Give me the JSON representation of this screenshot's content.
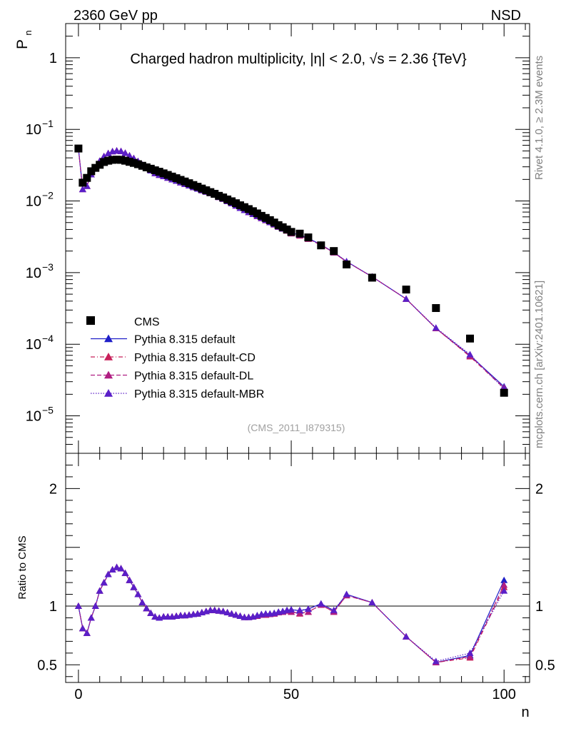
{
  "header": {
    "left": "2360 GeV pp",
    "right": "NSD"
  },
  "side_labels": {
    "rivet": "Rivet 4.1.0, ≥ 2.3M events",
    "mcplots": "mcplots.cern.ch [arXiv:2401.10621]"
  },
  "chart_data": {
    "type": "line",
    "title": "Charged hadron multiplicity, |η| < 2.0, √s = 2.36 {TeV}",
    "analysis_id": "(CMS_2011_I879315)",
    "xlabel": "n",
    "ylabel": "P_n",
    "ylabel_main": "P",
    "ylabel_sub": "n",
    "ratio_ylabel": "Ratio to CMS",
    "xlim": [
      -3,
      106
    ],
    "ylim": [
      3e-06,
      3
    ],
    "yscale": "log",
    "ratio_ylim": [
      0.35,
      2.3
    ],
    "x_ticks": [
      0,
      50,
      100
    ],
    "x_tick_labels": [
      "0",
      "50",
      "100"
    ],
    "y_ticks": [
      1,
      0.1,
      0.01,
      0.001,
      0.0001,
      1e-05
    ],
    "y_tick_labels": [
      {
        "base": "1",
        "exp": ""
      },
      {
        "base": "10",
        "exp": "−1"
      },
      {
        "base": "10",
        "exp": "−2"
      },
      {
        "base": "10",
        "exp": "−3"
      },
      {
        "base": "10",
        "exp": "−4"
      },
      {
        "base": "10",
        "exp": "−5"
      }
    ],
    "ratio_ticks": [
      0.5,
      1,
      2
    ],
    "ratio_tick_labels": [
      "0.5",
      "1",
      "2"
    ],
    "ratio_reference": 1,
    "data_series": {
      "name": "CMS",
      "x": [
        0,
        1,
        2,
        3,
        4,
        5,
        6,
        7,
        8,
        9,
        10,
        11,
        12,
        13,
        14,
        15,
        16,
        17,
        18,
        19,
        20,
        21,
        22,
        23,
        24,
        25,
        26,
        27,
        28,
        29,
        30,
        31,
        32,
        33,
        34,
        35,
        36,
        37,
        38,
        39,
        40,
        41,
        42,
        43,
        44,
        45,
        46,
        47,
        48,
        49,
        50,
        52,
        54,
        57,
        60,
        63,
        69,
        77,
        84,
        92,
        100
      ],
      "y": [
        0.054,
        0.018,
        0.021,
        0.026,
        0.029,
        0.032,
        0.035,
        0.0365,
        0.0375,
        0.0378,
        0.0375,
        0.0365,
        0.0352,
        0.034,
        0.0326,
        0.031,
        0.0295,
        0.0282,
        0.0268,
        0.0256,
        0.0243,
        0.0231,
        0.0219,
        0.0208,
        0.0197,
        0.0187,
        0.0177,
        0.0167,
        0.0158,
        0.0149,
        0.0141,
        0.0133,
        0.0126,
        0.0118,
        0.0112,
        0.0105,
        0.0099,
        0.0093,
        0.0087,
        0.0082,
        0.0077,
        0.0072,
        0.0067,
        0.0062,
        0.0058,
        0.0054,
        0.005,
        0.0046,
        0.0043,
        0.004,
        0.0037,
        0.0035,
        0.0031,
        0.0024,
        0.002,
        0.0013,
        0.00085,
        0.00058,
        0.00032,
        0.00012,
        2.1e-05
      ]
    },
    "series": [
      {
        "name": "Pythia 8.315 default",
        "color": "#1f1fc8",
        "dash": "solid",
        "ratio": [
          1.0,
          0.81,
          0.77,
          0.9,
          1.0,
          1.13,
          1.2,
          1.27,
          1.31,
          1.33,
          1.32,
          1.28,
          1.22,
          1.16,
          1.1,
          1.03,
          0.98,
          0.94,
          0.91,
          0.9,
          0.91,
          0.91,
          0.91,
          0.915,
          0.92,
          0.92,
          0.925,
          0.93,
          0.935,
          0.945,
          0.955,
          0.965,
          0.965,
          0.96,
          0.955,
          0.945,
          0.935,
          0.925,
          0.915,
          0.905,
          0.905,
          0.91,
          0.92,
          0.93,
          0.935,
          0.935,
          0.94,
          0.95,
          0.955,
          0.965,
          0.97,
          0.96,
          0.975,
          1.02,
          0.96,
          1.1,
          1.03,
          0.74,
          0.52,
          0.58,
          1.22
        ]
      },
      {
        "name": "Pythia 8.315 default-CD",
        "color": "#c8205a",
        "dash": "dashdot",
        "ratio": [
          1.0,
          0.81,
          0.77,
          0.9,
          1.0,
          1.13,
          1.2,
          1.27,
          1.31,
          1.33,
          1.32,
          1.28,
          1.22,
          1.16,
          1.1,
          1.03,
          0.98,
          0.94,
          0.91,
          0.9,
          0.91,
          0.91,
          0.91,
          0.915,
          0.92,
          0.92,
          0.925,
          0.93,
          0.935,
          0.945,
          0.955,
          0.965,
          0.965,
          0.96,
          0.955,
          0.945,
          0.935,
          0.925,
          0.915,
          0.905,
          0.905,
          0.91,
          0.915,
          0.925,
          0.925,
          0.93,
          0.935,
          0.945,
          0.95,
          0.96,
          0.95,
          0.935,
          0.95,
          1.01,
          0.95,
          1.09,
          1.03,
          0.74,
          0.52,
          0.56,
          1.16
        ]
      },
      {
        "name": "Pythia 8.315 default-DL",
        "color": "#b01e82",
        "dash": "dashed",
        "ratio": [
          1.0,
          0.81,
          0.77,
          0.9,
          1.0,
          1.13,
          1.2,
          1.27,
          1.31,
          1.33,
          1.32,
          1.28,
          1.22,
          1.16,
          1.1,
          1.03,
          0.98,
          0.94,
          0.91,
          0.9,
          0.91,
          0.91,
          0.91,
          0.915,
          0.92,
          0.92,
          0.925,
          0.93,
          0.935,
          0.945,
          0.955,
          0.965,
          0.965,
          0.96,
          0.955,
          0.945,
          0.935,
          0.925,
          0.915,
          0.905,
          0.905,
          0.91,
          0.915,
          0.925,
          0.925,
          0.93,
          0.935,
          0.945,
          0.95,
          0.96,
          0.95,
          0.94,
          0.95,
          1.01,
          0.95,
          1.09,
          1.03,
          0.74,
          0.52,
          0.57,
          1.18
        ]
      },
      {
        "name": "Pythia 8.315 default-MBR",
        "color": "#5a1fc8",
        "dash": "dotted",
        "ratio": [
          1.0,
          0.81,
          0.77,
          0.9,
          1.0,
          1.13,
          1.2,
          1.27,
          1.31,
          1.33,
          1.32,
          1.28,
          1.22,
          1.16,
          1.1,
          1.03,
          0.98,
          0.94,
          0.91,
          0.9,
          0.91,
          0.91,
          0.91,
          0.915,
          0.92,
          0.92,
          0.925,
          0.93,
          0.935,
          0.945,
          0.955,
          0.965,
          0.965,
          0.96,
          0.955,
          0.945,
          0.935,
          0.925,
          0.915,
          0.905,
          0.905,
          0.91,
          0.92,
          0.93,
          0.935,
          0.935,
          0.94,
          0.95,
          0.955,
          0.965,
          0.97,
          0.965,
          0.975,
          1.02,
          0.965,
          1.1,
          1.03,
          0.74,
          0.53,
          0.6,
          1.13
        ]
      }
    ],
    "legend_position": "lower-left"
  }
}
